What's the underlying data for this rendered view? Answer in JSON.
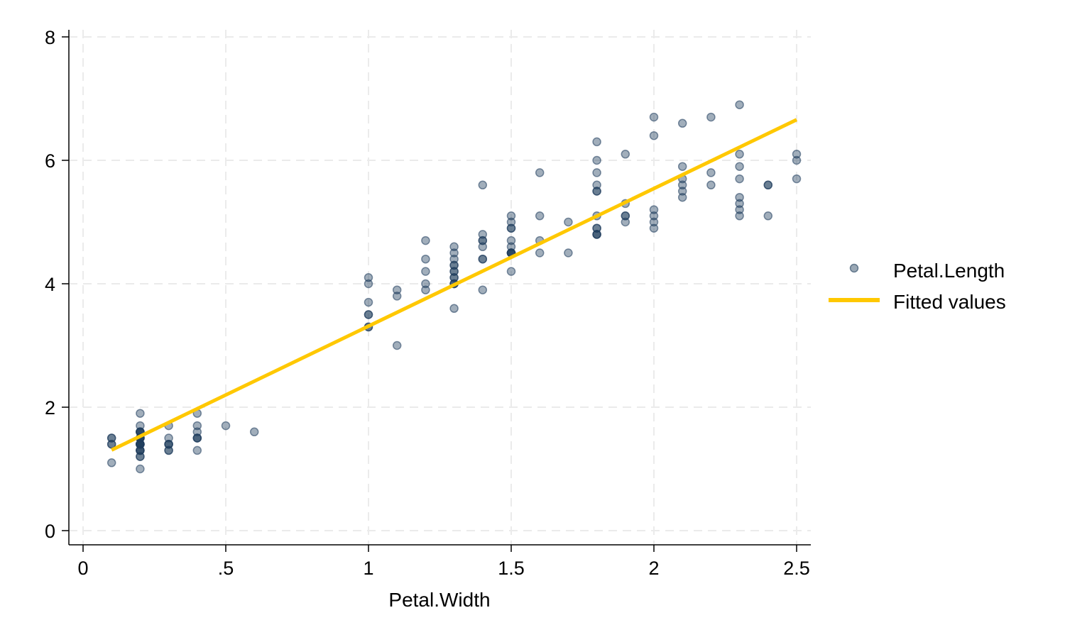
{
  "chart_data": {
    "type": "scatter",
    "title": "",
    "xlabel": "Petal.Width",
    "ylabel": "",
    "xlim": [
      0,
      2.5
    ],
    "ylim": [
      0,
      8
    ],
    "xticks": [
      0,
      0.5,
      1,
      1.5,
      2,
      2.5
    ],
    "xtick_labels": [
      "0",
      ".5",
      "1",
      "1.5",
      "2",
      "2.5"
    ],
    "yticks": [
      0,
      2,
      4,
      6,
      8
    ],
    "ytick_labels": [
      "0",
      "2",
      "4",
      "6",
      "8"
    ],
    "grid": true,
    "legend_position": "right",
    "series": [
      {
        "name": "Petal.Length",
        "kind": "scatter",
        "color": "#1f3d5c",
        "x": [
          0.2,
          0.2,
          0.2,
          0.2,
          0.2,
          0.4,
          0.3,
          0.2,
          0.2,
          0.1,
          0.2,
          0.2,
          0.1,
          0.1,
          0.2,
          0.4,
          0.4,
          0.3,
          0.3,
          0.3,
          0.2,
          0.4,
          0.2,
          0.5,
          0.2,
          0.2,
          0.4,
          0.2,
          0.2,
          0.2,
          0.2,
          0.4,
          0.1,
          0.2,
          0.2,
          0.2,
          0.2,
          0.1,
          0.2,
          0.2,
          0.3,
          0.3,
          0.2,
          0.6,
          0.4,
          0.3,
          0.2,
          0.2,
          0.2,
          0.2,
          1.4,
          1.5,
          1.5,
          1.3,
          1.5,
          1.3,
          1.6,
          1.0,
          1.3,
          1.4,
          1.0,
          1.5,
          1.0,
          1.4,
          1.3,
          1.4,
          1.5,
          1.0,
          1.5,
          1.1,
          1.8,
          1.3,
          1.5,
          1.2,
          1.3,
          1.4,
          1.4,
          1.7,
          1.5,
          1.0,
          1.1,
          1.0,
          1.2,
          1.6,
          1.5,
          1.6,
          1.5,
          1.3,
          1.3,
          1.3,
          1.2,
          1.4,
          1.2,
          1.0,
          1.3,
          1.2,
          1.3,
          1.3,
          1.1,
          1.3,
          2.5,
          1.9,
          2.1,
          1.8,
          2.2,
          2.1,
          1.7,
          1.8,
          1.8,
          2.5,
          2.0,
          1.9,
          2.1,
          2.0,
          2.4,
          2.3,
          1.8,
          2.2,
          2.3,
          1.5,
          2.3,
          2.0,
          2.0,
          1.8,
          2.1,
          1.8,
          1.8,
          1.8,
          2.1,
          1.6,
          1.9,
          2.0,
          2.2,
          1.5,
          1.4,
          2.3,
          2.4,
          1.8,
          1.8,
          2.1,
          2.4,
          2.3,
          1.9,
          2.3,
          2.5,
          2.3,
          1.9,
          2.0,
          2.3,
          1.8
        ],
        "y": [
          1.4,
          1.4,
          1.3,
          1.5,
          1.4,
          1.7,
          1.4,
          1.5,
          1.4,
          1.5,
          1.5,
          1.6,
          1.4,
          1.1,
          1.2,
          1.5,
          1.3,
          1.4,
          1.7,
          1.5,
          1.7,
          1.5,
          1.0,
          1.7,
          1.9,
          1.6,
          1.6,
          1.5,
          1.4,
          1.6,
          1.6,
          1.5,
          1.5,
          1.4,
          1.5,
          1.2,
          1.3,
          1.4,
          1.3,
          1.5,
          1.3,
          1.3,
          1.3,
          1.6,
          1.9,
          1.4,
          1.6,
          1.4,
          1.5,
          1.4,
          4.7,
          4.5,
          4.9,
          4.0,
          4.6,
          4.5,
          4.7,
          3.3,
          4.6,
          3.9,
          3.5,
          4.2,
          4.0,
          4.7,
          3.6,
          4.4,
          4.5,
          4.1,
          4.5,
          3.9,
          4.8,
          4.0,
          4.9,
          4.7,
          4.3,
          4.4,
          4.8,
          5.0,
          4.5,
          3.5,
          3.8,
          3.7,
          3.9,
          5.1,
          4.5,
          4.5,
          4.7,
          4.4,
          4.1,
          4.0,
          4.4,
          4.6,
          4.0,
          3.3,
          4.2,
          4.2,
          4.2,
          4.3,
          3.0,
          4.1,
          6.0,
          5.1,
          5.9,
          5.6,
          5.8,
          6.6,
          4.5,
          6.3,
          5.8,
          6.1,
          5.1,
          5.3,
          5.5,
          5.0,
          5.1,
          5.3,
          5.5,
          6.7,
          6.9,
          5.0,
          5.7,
          4.9,
          6.7,
          4.9,
          5.7,
          6.0,
          4.8,
          4.9,
          5.6,
          5.8,
          6.1,
          6.4,
          5.6,
          5.1,
          5.6,
          6.1,
          5.6,
          5.5,
          4.8,
          5.4,
          5.6,
          5.1,
          5.1,
          5.9,
          5.7,
          5.2,
          5.0,
          5.2,
          5.4,
          5.1
        ]
      },
      {
        "name": "Fitted values",
        "kind": "line",
        "color": "#ffc800",
        "x": [
          0.1,
          2.5
        ],
        "y": [
          1.306,
          6.658
        ]
      }
    ]
  }
}
